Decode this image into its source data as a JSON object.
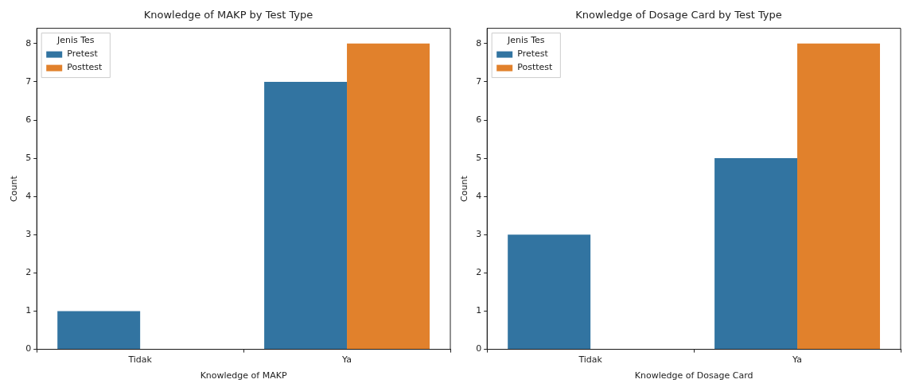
{
  "chart_data": [
    {
      "type": "bar",
      "title": "Knowledge of MAKP by Test Type",
      "xlabel": "Knowledge of MAKP",
      "ylabel": "Count",
      "legend_title": "Jenis Tes",
      "categories": [
        "Tidak",
        "Ya"
      ],
      "series": [
        {
          "name": "Pretest",
          "color": "#3274a1",
          "values": [
            1,
            7
          ]
        },
        {
          "name": "Posttest",
          "color": "#e1812c",
          "values": [
            0,
            8
          ]
        }
      ],
      "ylim": [
        0,
        8.4
      ],
      "yticks": [
        0,
        1,
        2,
        3,
        4,
        5,
        6,
        7,
        8
      ],
      "grid": false,
      "legend": "top left"
    },
    {
      "type": "bar",
      "title": "Knowledge of Dosage Card by Test Type",
      "xlabel": "Knowledge of Dosage Card",
      "ylabel": "Count",
      "legend_title": "Jenis Tes",
      "categories": [
        "Tidak",
        "Ya"
      ],
      "series": [
        {
          "name": "Pretest",
          "color": "#3274a1",
          "values": [
            3,
            5
          ]
        },
        {
          "name": "Posttest",
          "color": "#e1812c",
          "values": [
            0,
            8
          ]
        }
      ],
      "ylim": [
        0,
        8.4
      ],
      "yticks": [
        0,
        1,
        2,
        3,
        4,
        5,
        6,
        7,
        8
      ],
      "grid": false,
      "legend": "top left"
    }
  ]
}
